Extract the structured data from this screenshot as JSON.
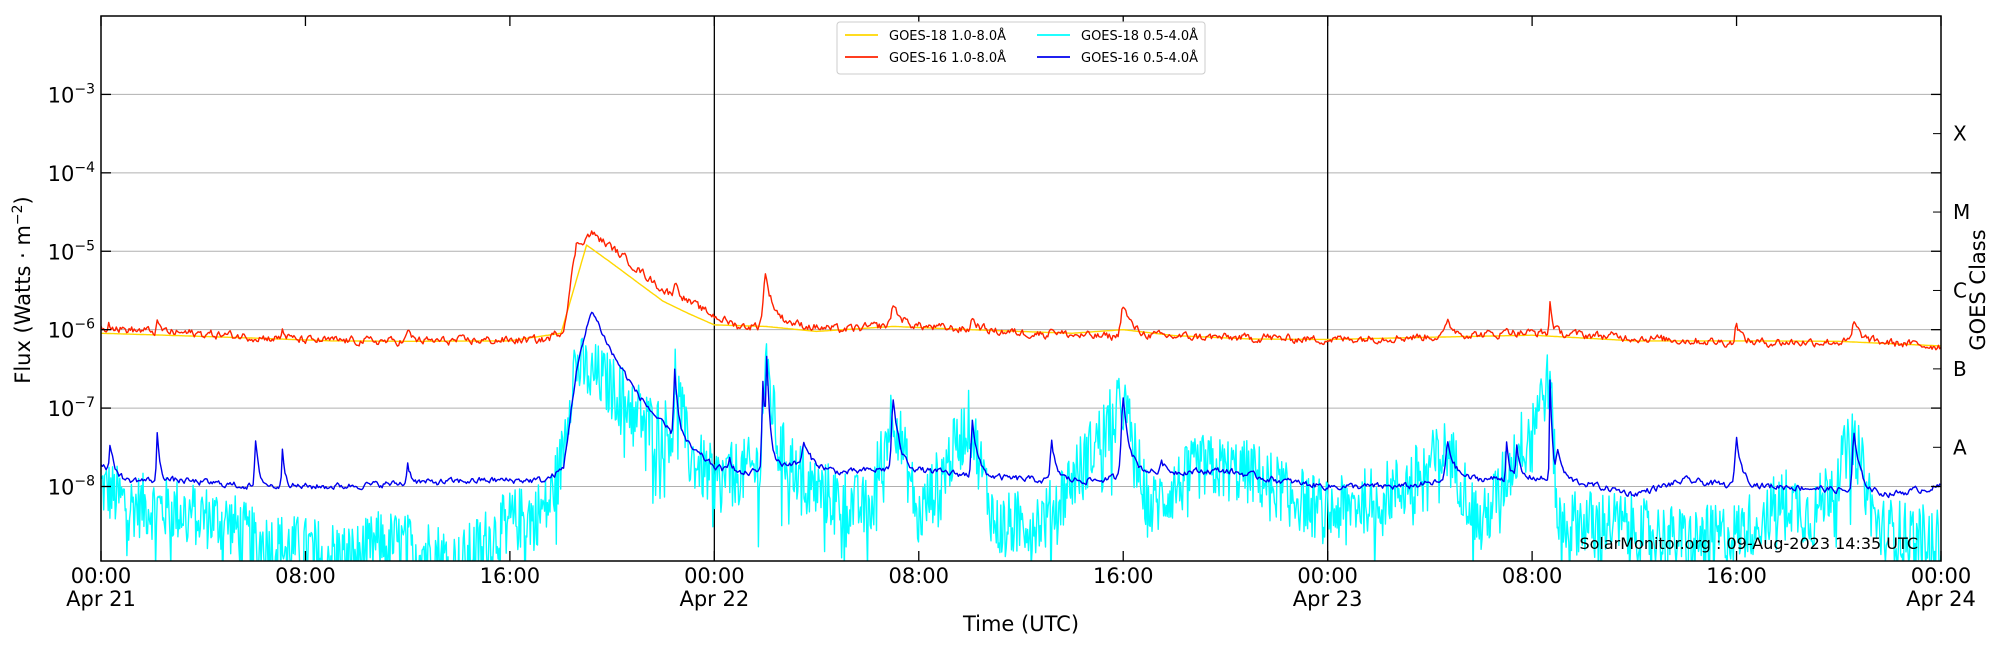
{
  "chart_data": {
    "type": "line",
    "xlabel": "Time (UTC)",
    "ylabel_main": "Flux (Watts · m",
    "ylabel_sup": "−2",
    "ylabel_close": ")",
    "ylabel_right": "GOES Class",
    "credit": "SolarMonitor.org : 09-Aug-2023 14:35 UTC",
    "x_range_hours": [
      0,
      72
    ],
    "y_range_log10": [
      -8.95,
      -2.0
    ],
    "y_scale": "log",
    "grid": "horizontal at decades",
    "legend_position": "top-center",
    "x_ticks": [
      {
        "x": 0,
        "time": "00:00",
        "date": "Apr 21"
      },
      {
        "x": 8,
        "time": "08:00",
        "date": ""
      },
      {
        "x": 16,
        "time": "16:00",
        "date": ""
      },
      {
        "x": 24,
        "time": "00:00",
        "date": "Apr 22"
      },
      {
        "x": 32,
        "time": "08:00",
        "date": ""
      },
      {
        "x": 40,
        "time": "16:00",
        "date": ""
      },
      {
        "x": 48,
        "time": "00:00",
        "date": "Apr 23"
      },
      {
        "x": 56,
        "time": "08:00",
        "date": ""
      },
      {
        "x": 64,
        "time": "16:00",
        "date": ""
      },
      {
        "x": 72,
        "time": "00:00",
        "date": "Apr 24"
      }
    ],
    "y_ticks": [
      {
        "exp": -8,
        "base": "10",
        "sup": "−8"
      },
      {
        "exp": -7,
        "base": "10",
        "sup": "−7"
      },
      {
        "exp": -6,
        "base": "10",
        "sup": "−6"
      },
      {
        "exp": -5,
        "base": "10",
        "sup": "−5"
      },
      {
        "exp": -4,
        "base": "10",
        "sup": "−4"
      },
      {
        "exp": -3,
        "base": "10",
        "sup": "−3"
      }
    ],
    "goes_classes": [
      {
        "label": "A",
        "exp": -7.5
      },
      {
        "label": "B",
        "exp": -6.5
      },
      {
        "label": "C",
        "exp": -5.5
      },
      {
        "label": "M",
        "exp": -4.5
      },
      {
        "label": "X",
        "exp": -3.5
      }
    ],
    "day_boundaries": [
      24,
      48
    ],
    "series": [
      {
        "name": "GOES-18 1.0-8.0Å",
        "color": "#ffd700",
        "points": [
          [
            0,
            9e-07
          ],
          [
            3,
            8.4e-07
          ],
          [
            6,
            7.8e-07
          ],
          [
            9,
            7.2e-07
          ],
          [
            12,
            7.1e-07
          ],
          [
            16,
            7.2e-07
          ],
          [
            18,
            9e-07
          ],
          [
            19,
            1.2e-05
          ],
          [
            20,
            7e-06
          ],
          [
            21,
            4e-06
          ],
          [
            22,
            2.3e-06
          ],
          [
            23,
            1.6e-06
          ],
          [
            24,
            1.15e-06
          ],
          [
            26,
            1.1e-06
          ],
          [
            28,
            9.5e-07
          ],
          [
            31,
            1.1e-06
          ],
          [
            34,
            1e-06
          ],
          [
            38,
            9e-07
          ],
          [
            40,
            1e-06
          ],
          [
            42,
            8.4e-07
          ],
          [
            45,
            7.6e-07
          ],
          [
            48,
            7.5e-07
          ],
          [
            52,
            8e-07
          ],
          [
            56,
            8.5e-07
          ],
          [
            60,
            7.2e-07
          ],
          [
            64,
            7.2e-07
          ],
          [
            68,
            7.1e-07
          ],
          [
            72,
            6.2e-07
          ]
        ]
      },
      {
        "name": "GOES-16 1.0-8.0Å",
        "color": "#ff2200",
        "base": [
          [
            0,
            1.05e-06
          ],
          [
            2,
            9.5e-07
          ],
          [
            5,
            8.5e-07
          ],
          [
            8,
            7.3e-07
          ],
          [
            12,
            7.1e-07
          ],
          [
            15,
            7.3e-07
          ],
          [
            17.4,
            7.4e-07
          ],
          [
            18.1,
            1e-06
          ],
          [
            18.6,
            1.2e-05
          ],
          [
            19.2,
            1.7e-05
          ],
          [
            20,
            1.1e-05
          ],
          [
            21,
            6e-06
          ],
          [
            22,
            3.2e-06
          ],
          [
            23,
            2.2e-06
          ],
          [
            24,
            1.5e-06
          ],
          [
            25,
            1.1e-06
          ],
          [
            27,
            1.15e-06
          ],
          [
            29,
            1e-06
          ],
          [
            31,
            1.15e-06
          ],
          [
            33,
            1.05e-06
          ],
          [
            35,
            9.5e-07
          ],
          [
            37,
            8.8e-07
          ],
          [
            39,
            8.2e-07
          ],
          [
            42,
            8.2e-07
          ],
          [
            45,
            7.8e-07
          ],
          [
            48,
            7.5e-07
          ],
          [
            51,
            8e-07
          ],
          [
            54,
            8.6e-07
          ],
          [
            56,
            9.2e-07
          ],
          [
            58,
            8.6e-07
          ],
          [
            61,
            7.6e-07
          ],
          [
            64,
            6.8e-07
          ],
          [
            68,
            7e-07
          ],
          [
            70,
            6.8e-07
          ],
          [
            72,
            6.1e-07
          ]
        ],
        "peaks": [
          [
            0.3,
            1.3e-06,
            0.15
          ],
          [
            2.2,
            1.2e-06,
            0.15
          ],
          [
            7.1,
            1e-06,
            0.15
          ],
          [
            12,
            9.5e-07,
            0.2
          ],
          [
            20.3,
            4.2e-06,
            0.25
          ],
          [
            22.45,
            4.2e-06,
            0.2
          ],
          [
            26.0,
            5e-06,
            0.35
          ],
          [
            31.0,
            2.1e-06,
            0.3
          ],
          [
            34.1,
            1.4e-06,
            0.25
          ],
          [
            37.2,
            1.1e-06,
            0.2
          ],
          [
            40.0,
            2.1e-06,
            0.35
          ],
          [
            45.5,
            8.5e-07,
            0.2
          ],
          [
            52.7,
            1.3e-06,
            0.3
          ],
          [
            55.0,
            1.1e-06,
            0.15
          ],
          [
            56.7,
            2.2e-06,
            0.12
          ],
          [
            64.0,
            1.3e-06,
            0.2
          ],
          [
            68.6,
            1.2e-06,
            0.3
          ]
        ],
        "jitter": 0.09
      },
      {
        "name": "GOES-18 0.5-4.0Å",
        "color": "#00ffff",
        "points": [
          [
            0,
            1e-08
          ],
          [
            1,
            6e-09
          ],
          [
            3,
            5e-09
          ],
          [
            5,
            3.5e-09
          ],
          [
            6,
            2e-09
          ],
          [
            8,
            1.6e-09
          ],
          [
            10,
            1.3e-09
          ],
          [
            11,
            2e-09
          ],
          [
            13,
            1.5e-09
          ],
          [
            14,
            1e-09
          ],
          [
            15,
            2e-09
          ],
          [
            16,
            3.5e-09
          ],
          [
            17,
            4.5e-09
          ],
          [
            17.5,
            5.5e-09
          ],
          [
            18,
            2e-08
          ],
          [
            18.5,
            3.5e-07
          ],
          [
            19.5,
            2.5e-07
          ],
          [
            20.5,
            1.3e-07
          ],
          [
            21.5,
            6e-08
          ],
          [
            22.4,
            5e-08
          ],
          [
            22.45,
            3.2e-07
          ],
          [
            23,
            2.5e-08
          ],
          [
            24,
            1.2e-08
          ],
          [
            25.8,
            1.8e-08
          ],
          [
            26.0,
            4.6e-07
          ],
          [
            26.5,
            3e-08
          ],
          [
            28,
            9e-09
          ],
          [
            30,
            5e-09
          ],
          [
            31,
            1e-07
          ],
          [
            32,
            4e-09
          ],
          [
            34,
            7e-08
          ],
          [
            35,
            3e-09
          ],
          [
            37,
            4e-09
          ],
          [
            40,
            1.2e-07
          ],
          [
            41,
            5e-09
          ],
          [
            43,
            1.8e-08
          ],
          [
            45,
            1.5e-08
          ],
          [
            48,
            4.5e-09
          ],
          [
            51,
            1e-08
          ],
          [
            52.7,
            3e-08
          ],
          [
            54,
            3e-09
          ],
          [
            55,
            1.4e-08
          ],
          [
            56.7,
            2.4e-07
          ],
          [
            57,
            3.5e-09
          ],
          [
            59,
            3.5e-09
          ],
          [
            62,
            2e-09
          ],
          [
            64,
            2.5e-09
          ],
          [
            66,
            7e-09
          ],
          [
            67,
            4e-09
          ],
          [
            68.6,
            4e-08
          ],
          [
            69.5,
            3e-09
          ],
          [
            72,
            2e-09
          ]
        ],
        "jitter": 0.42
      },
      {
        "name": "GOES-16 0.5-4.0Å",
        "color": "#0000ee",
        "base": [
          [
            0,
            2e-08
          ],
          [
            1,
            1.2e-08
          ],
          [
            3,
            1.2e-08
          ],
          [
            6,
            1e-08
          ],
          [
            9,
            1e-08
          ],
          [
            12,
            1.1e-08
          ],
          [
            15,
            1.2e-08
          ],
          [
            17.4,
            1.2e-08
          ],
          [
            18.1,
            1.7e-08
          ],
          [
            18.6,
            3e-07
          ],
          [
            19.2,
            1.8e-06
          ],
          [
            20,
            5e-07
          ],
          [
            21,
            1.5e-07
          ],
          [
            22,
            6e-08
          ],
          [
            23,
            3.2e-08
          ],
          [
            24,
            1.8e-08
          ],
          [
            25,
            1.4e-08
          ],
          [
            27,
            2e-08
          ],
          [
            29,
            1.5e-08
          ],
          [
            31,
            1.7e-08
          ],
          [
            33,
            1.5e-08
          ],
          [
            35,
            1.3e-08
          ],
          [
            37,
            1.2e-08
          ],
          [
            39,
            1.2e-08
          ],
          [
            41,
            1.5e-08
          ],
          [
            44,
            1.6e-08
          ],
          [
            46,
            1.2e-08
          ],
          [
            48,
            1e-08
          ],
          [
            51,
            1e-08
          ],
          [
            53,
            1.2e-08
          ],
          [
            56,
            1.3e-08
          ],
          [
            58,
            1.1e-08
          ],
          [
            60,
            8e-09
          ],
          [
            62,
            1.2e-08
          ],
          [
            64,
            1e-08
          ],
          [
            66,
            1e-08
          ],
          [
            68,
            9e-09
          ],
          [
            70,
            8e-09
          ],
          [
            72,
            1e-08
          ]
        ],
        "peaks": [
          [
            0.35,
            3.5e-08,
            0.12
          ],
          [
            2.2,
            4.5e-08,
            0.12
          ],
          [
            6.05,
            3.5e-08,
            0.15
          ],
          [
            7.1,
            3.2e-08,
            0.12
          ],
          [
            12,
            2e-08,
            0.15
          ],
          [
            20.3,
            1e-07,
            0.25
          ],
          [
            22.45,
            3.3e-07,
            0.15
          ],
          [
            24.6,
            2.5e-08,
            0.15
          ],
          [
            25.9,
            2.3e-07,
            0.15
          ],
          [
            26.05,
            4.8e-07,
            0.12
          ],
          [
            27.5,
            3.5e-08,
            0.3
          ],
          [
            31.0,
            1.3e-07,
            0.25
          ],
          [
            34.1,
            7.5e-08,
            0.2
          ],
          [
            37.2,
            3.5e-08,
            0.2
          ],
          [
            40.0,
            1.4e-07,
            0.28
          ],
          [
            41.5,
            2.3e-08,
            0.15
          ],
          [
            52.7,
            3.7e-08,
            0.3
          ],
          [
            55.0,
            4e-08,
            0.12
          ],
          [
            55.4,
            3.3e-08,
            0.12
          ],
          [
            56.7,
            2.3e-07,
            0.1
          ],
          [
            57.0,
            3e-08,
            0.2
          ],
          [
            64.0,
            4e-08,
            0.25
          ],
          [
            68.6,
            4.5e-08,
            0.25
          ]
        ],
        "jitter": 0.07
      }
    ]
  }
}
